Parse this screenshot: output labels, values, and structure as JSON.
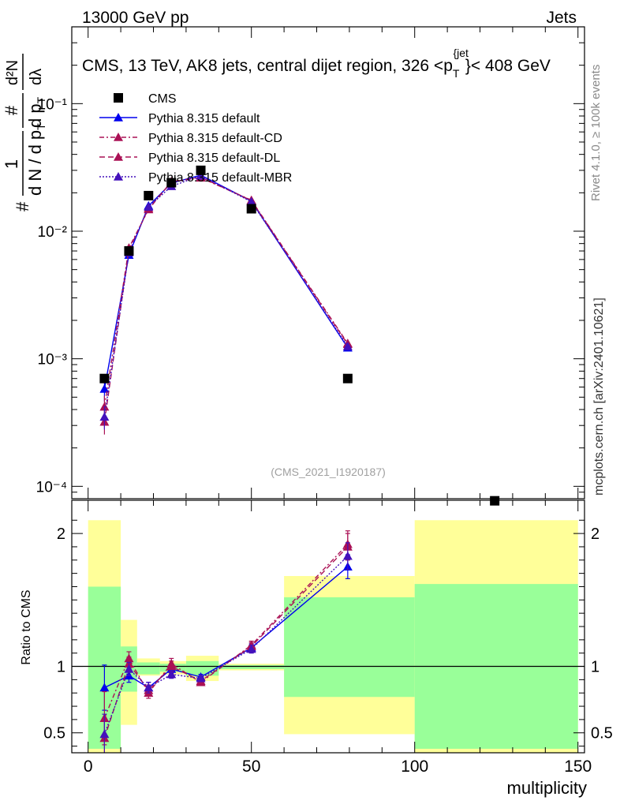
{
  "header": {
    "left": "13000 GeV pp",
    "right": "Jets"
  },
  "side_labels": {
    "rivet": "Rivet 4.1.0, ≥ 100k events",
    "mcplots": "mcplots.cern.ch [arXiv:2401.10621]"
  },
  "watermark": "(CMS_2021_I1920187)",
  "colors": {
    "data": "#000000",
    "default": "#0000ee",
    "cd": "#aa1155",
    "dl": "#aa1155",
    "mbr": "#4411bb",
    "band_inner": "#99ff99",
    "band_outer": "#ffff99"
  },
  "chart_data": [
    {
      "type": "line",
      "y_scale": "log",
      "title": "CMS, 13 TeV, AK8 jets, central dijet region, 326 <p_T^{jet}< 408 GeV",
      "title_parts": {
        "main": "CMS, 13 TeV, AK8 jets, central dijet region, 326 <p",
        "sub": "T",
        "sup": "{jet",
        "tail": "}< 408 GeV"
      },
      "ylabel_parts": {
        "hash": "#",
        "frac_num": "1",
        "frac_den": "d N / d p",
        "frac_den_sub": "T",
        "frac2_num": "#",
        "frac2_den": "d p",
        "frac2_den_sub": "T",
        "frac3_num": "d²N",
        "frac3_den": "dλ"
      },
      "xlim": [
        -5,
        152
      ],
      "ylim": [
        8e-05,
        0.4
      ],
      "ytick_labels": [
        "10⁻⁴",
        "10⁻³",
        "10⁻²",
        "10⁻¹"
      ],
      "ytick_values": [
        0.0001,
        0.001,
        0.01,
        0.1
      ],
      "legend_position": "top-left",
      "series": [
        {
          "name": "CMS",
          "style": "data",
          "x": [
            5,
            12.5,
            18.5,
            25.5,
            34.5,
            50,
            79.5,
            124.5
          ],
          "y": [
            0.0007,
            0.007,
            0.019,
            0.024,
            0.03,
            0.015,
            0.0007,
            7.7e-05
          ]
        },
        {
          "name": "Pythia 8.315 default",
          "style": "default",
          "x": [
            5,
            12.5,
            18.5,
            25.5,
            34.5,
            50,
            79.5
          ],
          "y": [
            0.00058,
            0.0065,
            0.0158,
            0.0238,
            0.0275,
            0.0172,
            0.00122
          ]
        },
        {
          "name": "Pythia 8.315 default-CD",
          "style": "cd",
          "x": [
            5,
            12.5,
            18.5,
            25.5,
            34.5,
            50,
            79.5
          ],
          "y": [
            0.00042,
            0.0074,
            0.0148,
            0.0245,
            0.0262,
            0.0175,
            0.00132
          ]
        },
        {
          "name": "Pythia 8.315 default-DL",
          "style": "dl",
          "x": [
            5,
            12.5,
            18.5,
            25.5,
            34.5,
            50,
            79.5
          ],
          "y": [
            0.00032,
            0.0071,
            0.0151,
            0.0243,
            0.0265,
            0.0174,
            0.0013
          ]
        },
        {
          "name": "Pythia 8.315 default-MBR",
          "style": "mbr",
          "x": [
            5,
            12.5,
            18.5,
            25.5,
            34.5,
            50,
            79.5
          ],
          "y": [
            0.00035,
            0.0068,
            0.0155,
            0.0225,
            0.0272,
            0.017,
            0.00125
          ]
        }
      ]
    },
    {
      "type": "line",
      "title": "",
      "xlabel": "multiplicity",
      "ylabel": "Ratio to CMS",
      "xlim": [
        -5,
        152
      ],
      "ylim": [
        0.35,
        2.25
      ],
      "xtick_labels": [
        "0",
        "50",
        "100",
        "150"
      ],
      "xtick_values": [
        0,
        50,
        100,
        150
      ],
      "ytick_labels": [
        "0.5",
        "1",
        "2"
      ],
      "ytick_values": [
        0.5,
        1,
        2
      ],
      "bands": [
        {
          "x0": 0,
          "x1": 10,
          "inner": [
            0.38,
            1.6
          ],
          "outer": [
            0.3,
            2.1
          ]
        },
        {
          "x0": 10,
          "x1": 15,
          "inner": [
            0.81,
            1.15
          ],
          "outer": [
            0.56,
            1.35
          ]
        },
        {
          "x0": 15,
          "x1": 22,
          "inner": [
            0.94,
            1.03
          ],
          "outer": [
            0.93,
            1.06
          ]
        },
        {
          "x0": 22,
          "x1": 30,
          "inner": [
            0.96,
            1.02
          ],
          "outer": [
            0.94,
            1.04
          ]
        },
        {
          "x0": 30,
          "x1": 40,
          "inner": [
            0.93,
            1.04
          ],
          "outer": [
            0.89,
            1.08
          ]
        },
        {
          "x0": 40,
          "x1": 60,
          "inner": [
            0.98,
            1.01
          ],
          "outer": [
            0.97,
            1.02
          ]
        },
        {
          "x0": 60,
          "x1": 100,
          "inner": [
            0.77,
            1.52
          ],
          "outer": [
            0.49,
            1.68
          ]
        },
        {
          "x0": 100,
          "x1": 150,
          "inner": [
            0.38,
            1.62
          ],
          "outer": [
            0.3,
            2.1
          ]
        }
      ],
      "series": [
        {
          "name": "Pythia 8.315 default",
          "style": "default",
          "x": [
            5,
            12.5,
            18.5,
            25.5,
            34.5,
            50,
            79.5
          ],
          "y": [
            0.84,
            0.93,
            0.84,
            0.98,
            0.92,
            1.14,
            1.75
          ],
          "err": [
            0.17,
            0.05,
            0.04,
            0.03,
            0.02,
            0.03,
            0.09
          ]
        },
        {
          "name": "Pythia 8.315 default-CD",
          "style": "cd",
          "x": [
            5,
            12.5,
            18.5,
            25.5,
            34.5,
            50,
            79.5
          ],
          "y": [
            0.61,
            1.06,
            0.8,
            1.02,
            0.88,
            1.16,
            1.92
          ],
          "err": [
            0.2,
            0.05,
            0.04,
            0.04,
            0.02,
            0.03,
            0.1
          ]
        },
        {
          "name": "Pythia 8.315 default-DL",
          "style": "dl",
          "x": [
            5,
            12.5,
            18.5,
            25.5,
            34.5,
            50,
            79.5
          ],
          "y": [
            0.46,
            1.02,
            0.82,
            1.0,
            0.89,
            1.15,
            1.9
          ],
          "err": [
            0.15,
            0.05,
            0.04,
            0.04,
            0.02,
            0.03,
            0.1
          ]
        },
        {
          "name": "Pythia 8.315 default-MBR",
          "style": "mbr",
          "x": [
            5,
            12.5,
            18.5,
            25.5,
            34.5,
            50,
            79.5
          ],
          "y": [
            0.49,
            0.98,
            0.84,
            0.94,
            0.91,
            1.13,
            1.83
          ],
          "err": [
            0.15,
            0.05,
            0.04,
            0.03,
            0.02,
            0.03,
            0.1
          ]
        }
      ]
    }
  ]
}
